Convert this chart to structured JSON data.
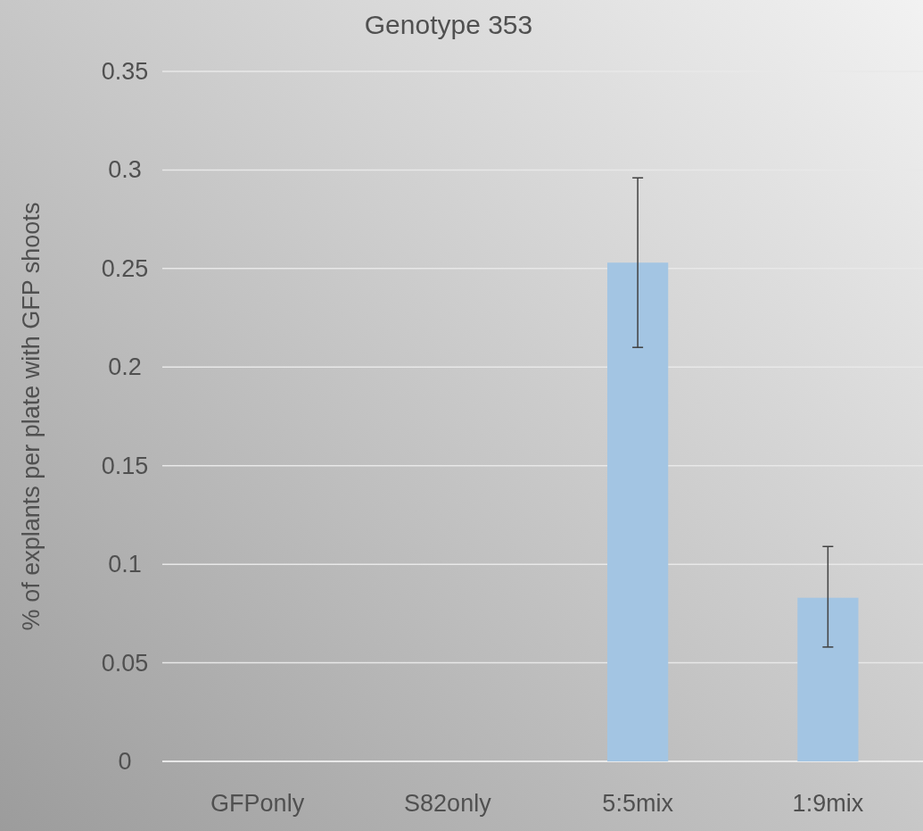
{
  "chart_data": {
    "type": "bar",
    "title": "Genotype 353",
    "ylabel": "% of explants per plate with GFP shoots",
    "categories": [
      "GFPonly",
      "S82only",
      "5:5mix",
      "1:9mix"
    ],
    "values": [
      0,
      0,
      0.253,
      0.083
    ],
    "errors": [
      null,
      null,
      [
        0.21,
        0.296
      ],
      [
        0.058,
        0.109
      ]
    ],
    "color": "#a3c5e3",
    "ylim": [
      0,
      0.35
    ],
    "yticks": [
      0,
      0.05,
      0.1,
      0.15,
      0.2,
      0.25,
      0.3,
      0.35
    ],
    "grid": "y"
  }
}
